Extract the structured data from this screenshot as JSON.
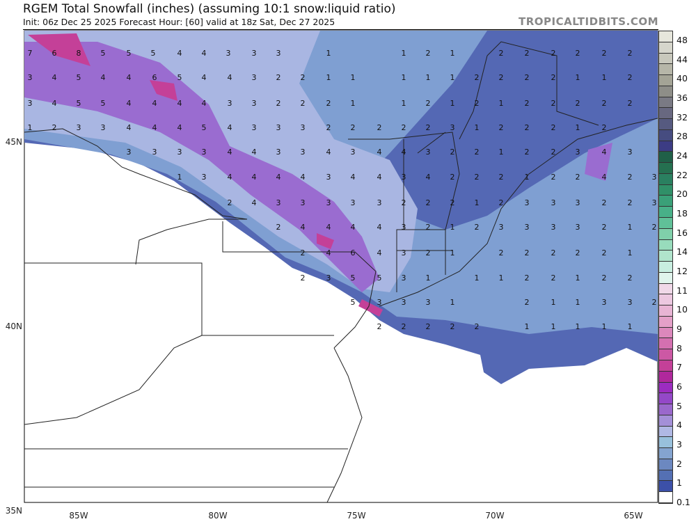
{
  "header": {
    "title": "RGEM Total Snowfall (inches) (assuming 10:1 snow:liquid ratio)",
    "subtitle": "Init: 06z Dec 25 2025   Forecast Hour: [60]   valid at 18z Sat, Dec 27 2025",
    "brand": "TROPICALTIDBITS.COM"
  },
  "axes": {
    "lon_labels": [
      "85W",
      "80W",
      "75W",
      "70W",
      "65W"
    ],
    "lat_labels": [
      "45N",
      "40N",
      "35N"
    ]
  },
  "colorbar": {
    "labels": [
      "48",
      "44",
      "40",
      "36",
      "32",
      "28",
      "24",
      "22",
      "20",
      "18",
      "16",
      "14",
      "12",
      "11",
      "10",
      "9",
      "8",
      "7",
      "6",
      "5",
      "4",
      "3",
      "2",
      "1",
      "0.1"
    ],
    "colors": [
      "#e6e6dc",
      "#d6d6cc",
      "#c8c8bc",
      "#b6b6a8",
      "#a4a496",
      "#8e8e88",
      "#7a7a84",
      "#686880",
      "#565a80",
      "#464c80",
      "#3c3c84",
      "#206048",
      "#257050",
      "#2a8060",
      "#309068",
      "#3aa078",
      "#48b088",
      "#60c098",
      "#80d0aa",
      "#98dcbc",
      "#b0e4cc",
      "#c8eee0",
      "#e0f4ec",
      "#f0d8e8",
      "#ecc8e0",
      "#e8b4d4",
      "#e4a0c8",
      "#dc88bc",
      "#d470b0",
      "#cc58a4",
      "#c44098",
      "#b0289c",
      "#9c2cc0",
      "#9448c8",
      "#9a68cc",
      "#a490d8",
      "#b0b8e4",
      "#98c0dc",
      "#84a4d0",
      "#6c88c0",
      "#5470b4",
      "#3c50a8",
      "#ffffff"
    ]
  },
  "grid_rows": [
    [
      "7",
      "6",
      "8",
      "5",
      "5",
      "5",
      "4",
      "4",
      "3",
      "3",
      "3",
      "1",
      "1",
      "2",
      "1",
      "2",
      "2",
      "2",
      "2",
      "2",
      "2"
    ],
    [
      "3",
      "4",
      "5",
      "4",
      "4",
      "6",
      "5",
      "4",
      "4",
      "3",
      "2",
      "2",
      "1",
      "1",
      "1",
      "1",
      "1",
      "2",
      "2",
      "2",
      "2",
      "1",
      "1",
      "2"
    ],
    [
      "3",
      "4",
      "5",
      "5",
      "4",
      "4",
      "4",
      "4",
      "3",
      "3",
      "2",
      "2",
      "2",
      "1",
      "1",
      "2",
      "1",
      "2",
      "1",
      "2",
      "2",
      "2",
      "2",
      "2"
    ],
    [
      "1",
      "2",
      "3",
      "3",
      "4",
      "4",
      "4",
      "5",
      "4",
      "3",
      "3",
      "3",
      "2",
      "2",
      "2",
      "2",
      "2",
      "3",
      "1",
      "2",
      "2",
      "2",
      "1",
      "2"
    ],
    [
      "3",
      "3",
      "3",
      "3",
      "4",
      "4",
      "3",
      "3",
      "4",
      "3",
      "4",
      "4",
      "3",
      "2",
      "2",
      "1",
      "2",
      "2",
      "3",
      "4",
      "3"
    ],
    [
      "1",
      "3",
      "4",
      "4",
      "4",
      "4",
      "3",
      "4",
      "4",
      "3",
      "4",
      "2",
      "2",
      "2",
      "1",
      "2",
      "2",
      "4",
      "2",
      "3"
    ],
    [
      "2",
      "4",
      "3",
      "3",
      "3",
      "3",
      "3",
      "2",
      "2",
      "2",
      "1",
      "2",
      "3",
      "3",
      "3",
      "2",
      "2",
      "3"
    ],
    [
      "2",
      "4",
      "4",
      "4",
      "4",
      "3",
      "2",
      "1",
      "2",
      "3",
      "3",
      "3",
      "3",
      "2",
      "1",
      "2"
    ],
    [
      "2",
      "4",
      "6",
      "4",
      "3",
      "2",
      "1",
      "2",
      "2",
      "2",
      "2",
      "2",
      "1"
    ],
    [
      "2",
      "3",
      "5",
      "5",
      "3",
      "1",
      "1",
      "1",
      "2",
      "2",
      "1",
      "2",
      "2"
    ],
    [
      "5",
      "3",
      "3",
      "3",
      "1",
      "2",
      "1",
      "1",
      "3",
      "3",
      "2"
    ],
    [
      "2",
      "2",
      "2",
      "2",
      "2",
      "1",
      "1",
      "1",
      "1",
      "1"
    ]
  ]
}
